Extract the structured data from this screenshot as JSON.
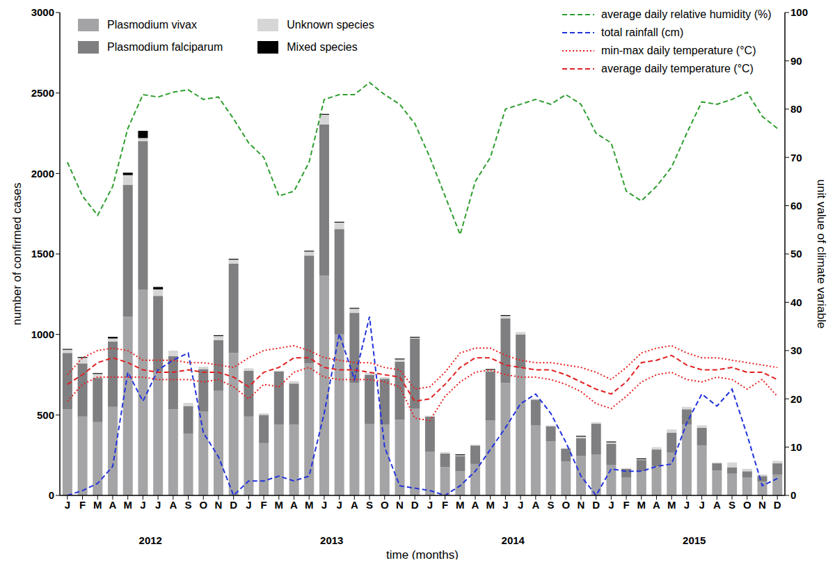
{
  "chart_data": {
    "type": "bar",
    "stacked": true,
    "grid": false,
    "x_label": "time (months)",
    "y_label": "number of confirmed cases",
    "y2_label": "unit value of climate variable",
    "categories": [
      "J",
      "F",
      "M",
      "A",
      "M",
      "J",
      "J",
      "A",
      "S",
      "O",
      "N",
      "D",
      "J",
      "F",
      "M",
      "A",
      "M",
      "J",
      "J",
      "A",
      "S",
      "O",
      "N",
      "D",
      "J",
      "F",
      "M",
      "A",
      "M",
      "J",
      "J",
      "A",
      "S",
      "O",
      "N",
      "D",
      "J",
      "F",
      "M",
      "A",
      "M",
      "J",
      "J",
      "A",
      "S",
      "O",
      "N",
      "D"
    ],
    "x_group_labels": [
      "2012",
      "2013",
      "2014",
      "2015"
    ],
    "ylim": [
      0,
      3000
    ],
    "yticks": [
      0,
      500,
      1000,
      1500,
      2000,
      2500,
      3000
    ],
    "y2lim": [
      0,
      100
    ],
    "y2ticks": [
      0,
      10,
      20,
      30,
      40,
      50,
      60,
      70,
      80,
      90,
      100
    ],
    "series": [
      {
        "name": "Plasmodium vivax",
        "type": "bar",
        "color": "#a4a4a7",
        "values": [
          535,
          490,
          455,
          550,
          1110,
          1280,
          770,
          535,
          385,
          520,
          650,
          885,
          490,
          325,
          440,
          440,
          820,
          1365,
          1000,
          700,
          445,
          440,
          470,
          540,
          270,
          175,
          150,
          195,
          465,
          700,
          790,
          435,
          335,
          210,
          245,
          255,
          190,
          110,
          150,
          180,
          265,
          440,
          310,
          155,
          135,
          110,
          85,
          130
        ]
      },
      {
        "name": "Plasmodium falciparum",
        "type": "bar",
        "color": "#7f7f82",
        "values": [
          350,
          330,
          275,
          405,
          820,
          920,
          470,
          330,
          170,
          265,
          315,
          555,
          285,
          175,
          330,
          255,
          670,
          940,
          655,
          435,
          305,
          285,
          360,
          435,
          220,
          85,
          95,
          115,
          305,
          400,
          210,
          160,
          95,
          80,
          110,
          190,
          130,
          55,
          70,
          105,
          125,
          95,
          110,
          45,
          40,
          40,
          35,
          70
        ]
      },
      {
        "name": "Unknown species",
        "type": "bar",
        "color": "#d6d6d6",
        "values": [
          20,
          35,
          25,
          20,
          60,
          20,
          40,
          35,
          20,
          15,
          25,
          25,
          15,
          10,
          5,
          15,
          25,
          60,
          40,
          25,
          10,
          10,
          15,
          5,
          5,
          10,
          5,
          5,
          10,
          15,
          15,
          5,
          5,
          5,
          10,
          10,
          10,
          5,
          5,
          15,
          20,
          15,
          15,
          5,
          30,
          15,
          10,
          15
        ]
      },
      {
        "name": "Mixed species",
        "type": "bar",
        "color": "#000000",
        "values": [
          5,
          5,
          5,
          10,
          15,
          45,
          15,
          0,
          0,
          0,
          5,
          5,
          0,
          0,
          0,
          0,
          5,
          5,
          5,
          5,
          0,
          0,
          5,
          5,
          0,
          0,
          5,
          0,
          5,
          5,
          0,
          0,
          0,
          0,
          5,
          0,
          5,
          0,
          5,
          0,
          0,
          0,
          0,
          0,
          0,
          0,
          0,
          0
        ]
      },
      {
        "name": "average daily relative humidity (%)",
        "type": "line",
        "line_style": "dashed",
        "axis": "y2",
        "color": "#2e9e2e",
        "values": [
          69,
          62,
          58,
          64,
          76,
          83,
          82.5,
          83.5,
          84,
          82,
          82.5,
          78,
          73,
          70,
          62,
          63,
          69,
          82,
          83,
          83,
          85.5,
          83,
          81,
          77,
          70,
          62,
          54,
          65,
          70,
          80,
          81,
          82,
          81,
          83,
          81,
          75,
          73,
          63,
          61,
          64,
          68,
          75,
          81.5,
          81,
          82,
          83.5,
          78.5,
          76
        ]
      },
      {
        "name": "total rainfall (cm)",
        "type": "line",
        "line_style": "dashed",
        "axis": "y2",
        "color": "#2233dd",
        "values": [
          0,
          1,
          2.5,
          6,
          25.5,
          19.5,
          26,
          28,
          29.5,
          13,
          8,
          0,
          3,
          3,
          4,
          3,
          4,
          17,
          33.5,
          24,
          37,
          10,
          2,
          1.5,
          1,
          0,
          2,
          5,
          9.5,
          14,
          19,
          21,
          17,
          11,
          4,
          0,
          5.5,
          5,
          5,
          6,
          6.5,
          15,
          21,
          18.5,
          22,
          12.5,
          2,
          3.5
        ]
      },
      {
        "name": "min-max daily temperature (°C)",
        "type": "line",
        "line_style": "dotted",
        "axis": "y2",
        "color": "#e8201e",
        "values_min": [
          19.5,
          23,
          24.5,
          24.5,
          24.5,
          24.5,
          24,
          24,
          24,
          23.5,
          24,
          22.5,
          20,
          23,
          22.5,
          25.5,
          26.5,
          24.5,
          24,
          24,
          24,
          23.5,
          22.5,
          16,
          15.5,
          20.5,
          23.5,
          25.5,
          26,
          25,
          24.5,
          24.5,
          24,
          23,
          21.5,
          19,
          18,
          20.5,
          23.5,
          25,
          25.5,
          24,
          23.5,
          24.5,
          24,
          22,
          24,
          20.5
        ],
        "values_max": [
          25,
          28.5,
          30,
          30.5,
          30,
          28,
          28,
          28,
          27.5,
          27.5,
          27,
          26.5,
          28.5,
          30,
          30.5,
          31,
          30,
          28.5,
          28,
          27.5,
          27.5,
          26.5,
          26,
          22,
          22.5,
          25.5,
          29.5,
          30.5,
          30.5,
          29,
          28,
          27.5,
          27.5,
          27,
          26.5,
          25.5,
          24,
          26.5,
          29.5,
          30.5,
          31,
          29.5,
          28.5,
          28.5,
          28,
          27.5,
          27,
          26.5
        ]
      },
      {
        "name": "average daily temperature (°C)",
        "type": "line",
        "line_style": "dashed",
        "axis": "y2",
        "color": "#e02020",
        "values": [
          23,
          25,
          27.5,
          28.5,
          27.5,
          26,
          25.5,
          25.5,
          26,
          25.5,
          25.5,
          24.5,
          22.5,
          25.5,
          26.5,
          28.5,
          28.5,
          26.5,
          26,
          26,
          25.5,
          25,
          24.5,
          19.5,
          20,
          23,
          26.5,
          28.5,
          28.5,
          27,
          26.5,
          26,
          26,
          25,
          23.5,
          22,
          21,
          23.5,
          27.5,
          28,
          29,
          27,
          26,
          26,
          26.5,
          25.5,
          25.5,
          24
        ]
      }
    ]
  }
}
